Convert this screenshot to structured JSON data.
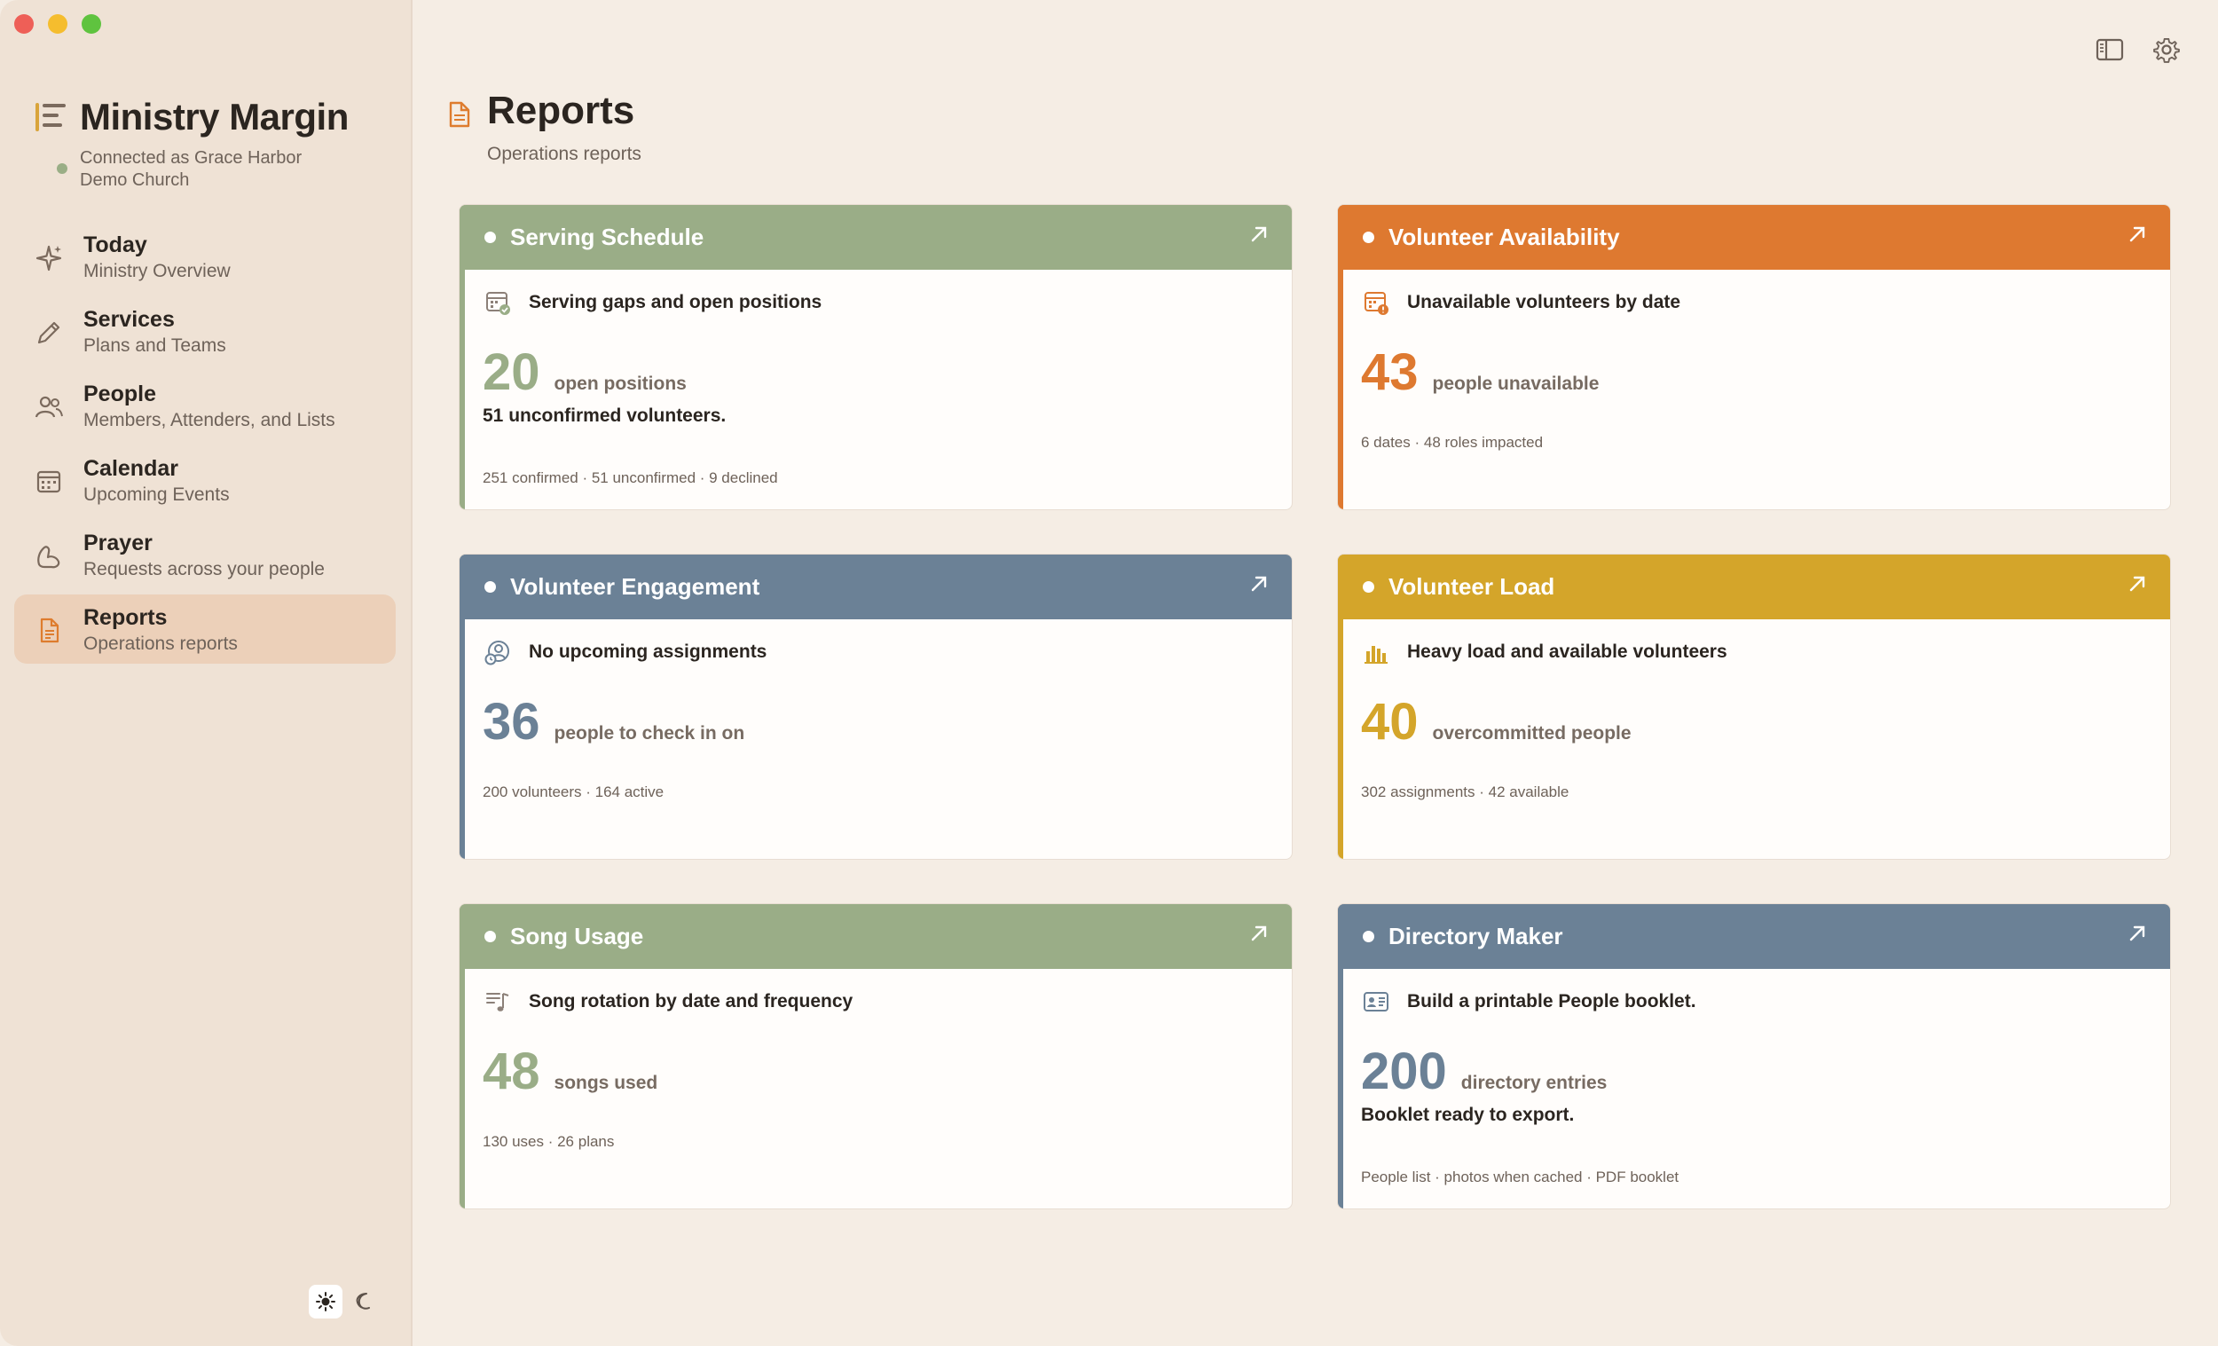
{
  "app": {
    "title": "Ministry Margin",
    "connection": "Connected as Grace Harbor Demo Church"
  },
  "sidebar": {
    "items": [
      {
        "title": "Today",
        "subtitle": "Ministry Overview",
        "icon": "sparkle-icon"
      },
      {
        "title": "Services",
        "subtitle": "Plans and Teams",
        "icon": "pencil-icon"
      },
      {
        "title": "People",
        "subtitle": "Members, Attenders, and Lists",
        "icon": "people-icon"
      },
      {
        "title": "Calendar",
        "subtitle": "Upcoming Events",
        "icon": "calendar-icon"
      },
      {
        "title": "Prayer",
        "subtitle": "Requests across your people",
        "icon": "prayer-icon"
      },
      {
        "title": "Reports",
        "subtitle": "Operations reports",
        "icon": "document-icon",
        "active": true
      }
    ]
  },
  "page": {
    "title": "Reports",
    "subtitle": "Operations reports"
  },
  "colors": {
    "sage": "#9aad87",
    "orange": "#de7930",
    "slate": "#6b8196",
    "gold": "#d4a52a"
  },
  "cards": [
    {
      "title": "Serving Schedule",
      "color": "#9aad87",
      "icon": "calendar-check-icon",
      "subtitle": "Serving gaps and open positions",
      "number": "20",
      "label": "open positions",
      "note": "51 unconfirmed volunteers.",
      "footer": "251 confirmed · 51 unconfirmed · 9 declined"
    },
    {
      "title": "Volunteer Availability",
      "color": "#de7930",
      "icon": "calendar-alert-icon",
      "subtitle": "Unavailable volunteers by date",
      "number": "43",
      "label": "people unavailable",
      "note": "",
      "footer": "6 dates · 48 roles impacted"
    },
    {
      "title": "Volunteer Engagement",
      "color": "#6b8196",
      "icon": "person-clock-icon",
      "subtitle": "No upcoming assignments",
      "number": "36",
      "label": "people to check in on",
      "note": "",
      "footer": "200 volunteers · 164 active"
    },
    {
      "title": "Volunteer Load",
      "color": "#d4a52a",
      "icon": "bar-chart-icon",
      "subtitle": "Heavy load and available volunteers",
      "number": "40",
      "label": "overcommitted people",
      "note": "",
      "footer": "302 assignments · 42 available"
    },
    {
      "title": "Song Usage",
      "color": "#9aad87",
      "icon": "music-list-icon",
      "subtitle": "Song rotation by date and frequency",
      "number": "48",
      "label": "songs used",
      "note": "",
      "footer": "130 uses · 26 plans"
    },
    {
      "title": "Directory Maker",
      "color": "#6b8196",
      "icon": "id-card-icon",
      "subtitle": "Build a printable People booklet.",
      "number": "200",
      "label": "directory entries",
      "note": "Booklet ready to export.",
      "footer": "People list · photos when cached · PDF booklet"
    }
  ]
}
